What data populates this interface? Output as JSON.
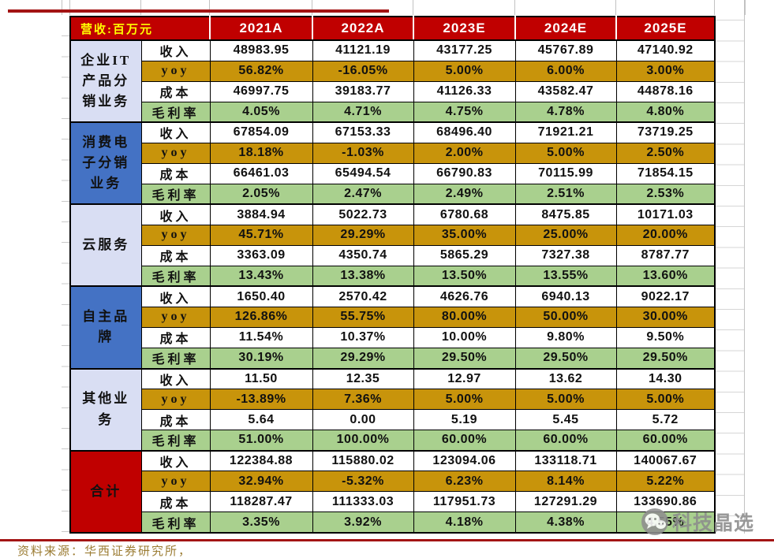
{
  "table": {
    "corner_label": "营收:百万元",
    "years": [
      "2021A",
      "2022A",
      "2023E",
      "2024E",
      "2025E"
    ],
    "metric_labels": [
      "收入",
      "yoy",
      "成本",
      "毛利率"
    ],
    "groups": [
      {
        "name": "企业IT\n产品分\n销业务",
        "style": "lavender",
        "rows": [
          [
            "48983.95",
            "41121.19",
            "43177.25",
            "45767.89",
            "47140.92"
          ],
          [
            "56.82%",
            "-16.05%",
            "5.00%",
            "6.00%",
            "3.00%"
          ],
          [
            "46997.75",
            "39183.77",
            "41126.33",
            "43582.47",
            "44878.16"
          ],
          [
            "4.05%",
            "4.71%",
            "4.75%",
            "4.78%",
            "4.80%"
          ]
        ]
      },
      {
        "name": "消费电\n子分销\n业务",
        "style": "blue",
        "rows": [
          [
            "67854.09",
            "67153.33",
            "68496.40",
            "71921.21",
            "73719.25"
          ],
          [
            "18.18%",
            "-1.03%",
            "2.00%",
            "5.00%",
            "2.50%"
          ],
          [
            "66461.03",
            "65494.54",
            "66790.83",
            "70115.99",
            "71854.15"
          ],
          [
            "2.05%",
            "2.47%",
            "2.49%",
            "2.51%",
            "2.53%"
          ]
        ]
      },
      {
        "name": "云服务",
        "style": "lavender",
        "rows": [
          [
            "3884.94",
            "5022.73",
            "6780.68",
            "8475.85",
            "10171.03"
          ],
          [
            "45.71%",
            "29.29%",
            "35.00%",
            "25.00%",
            "20.00%"
          ],
          [
            "3363.09",
            "4350.74",
            "5865.29",
            "7327.38",
            "8787.77"
          ],
          [
            "13.43%",
            "13.38%",
            "13.50%",
            "13.55%",
            "13.60%"
          ]
        ]
      },
      {
        "name": "自主品\n牌",
        "style": "blue",
        "rows": [
          [
            "1650.40",
            "2570.42",
            "4626.76",
            "6940.13",
            "9022.17"
          ],
          [
            "126.86%",
            "55.75%",
            "80.00%",
            "50.00%",
            "30.00%"
          ],
          [
            "11.54%",
            "10.37%",
            "10.00%",
            "9.80%",
            "9.50%"
          ],
          [
            "30.19%",
            "29.29%",
            "29.50%",
            "29.50%",
            "29.50%"
          ]
        ]
      },
      {
        "name": "其他业\n务",
        "style": "lavender",
        "rows": [
          [
            "11.50",
            "12.35",
            "12.97",
            "13.62",
            "14.30"
          ],
          [
            "-13.89%",
            "7.36%",
            "5.00%",
            "5.00%",
            "5.00%"
          ],
          [
            "5.64",
            "0.00",
            "5.19",
            "5.45",
            "5.72"
          ],
          [
            "51.00%",
            "100.00%",
            "60.00%",
            "60.00%",
            "60.00%"
          ]
        ]
      },
      {
        "name": "合计",
        "style": "red",
        "rows": [
          [
            "122384.88",
            "115880.02",
            "123094.06",
            "133118.71",
            "140067.67"
          ],
          [
            "32.94%",
            "-5.32%",
            "6.23%",
            "8.14%",
            "5.22%"
          ],
          [
            "118287.47",
            "111333.03",
            "117951.73",
            "127291.29",
            "133690.86"
          ],
          [
            "3.35%",
            "3.92%",
            "4.18%",
            "4.38%",
            "4.55%"
          ]
        ]
      }
    ]
  },
  "source_note": "资料来源：华西证券研究所，",
  "watermark": {
    "text": "科技晶选",
    "icon": "wechat-icon"
  },
  "colors": {
    "header_red": "#C00000",
    "total_red": "#C00000",
    "yoy_gold": "#C8940B",
    "margin_green": "#A9D08E",
    "group_lavender": "#D9DEF3",
    "group_blue": "#4472C4",
    "corner_text_yellow": "#FFFF00",
    "divider_red": "#A31414",
    "source_text": "#9B7C33",
    "watermark_grey": "#8C8C8C"
  }
}
